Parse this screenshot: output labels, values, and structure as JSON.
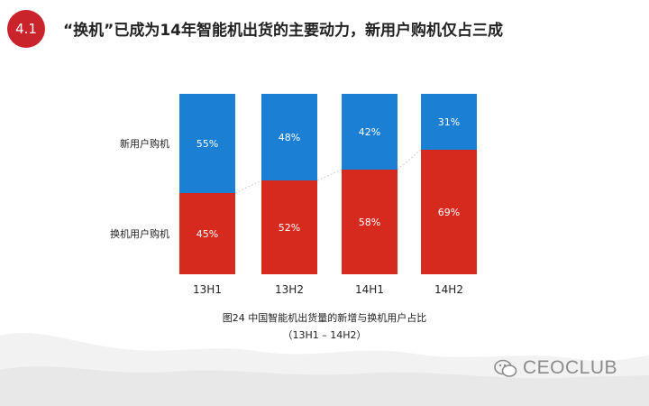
{
  "badge": "4.1",
  "title": "“换机”已成为14年智能机出货的主要动力，新用户购机仅占三成",
  "caption": {
    "line1": "图24 中国智能机出货量的新增与换机用户占比",
    "line2": "（13H1 – 14H2）"
  },
  "watermark": "CEOCLUB",
  "colors": {
    "accent": "#c9242b",
    "new_users": "#1b7fd3",
    "switchers": "#d62a1e"
  },
  "chart_data": {
    "type": "bar",
    "stacked": true,
    "categories": [
      "13H1",
      "13H2",
      "14H1",
      "14H2"
    ],
    "series": [
      {
        "name": "换机用户购机",
        "values": [
          45,
          52,
          58,
          69
        ],
        "labels": [
          "45%",
          "52%",
          "58%",
          "69%"
        ]
      },
      {
        "name": "新用户购机",
        "values": [
          55,
          48,
          42,
          31
        ],
        "labels": [
          "55%",
          "48%",
          "42%",
          "31%"
        ]
      }
    ],
    "ylim": [
      0,
      100
    ],
    "legend": "left"
  }
}
